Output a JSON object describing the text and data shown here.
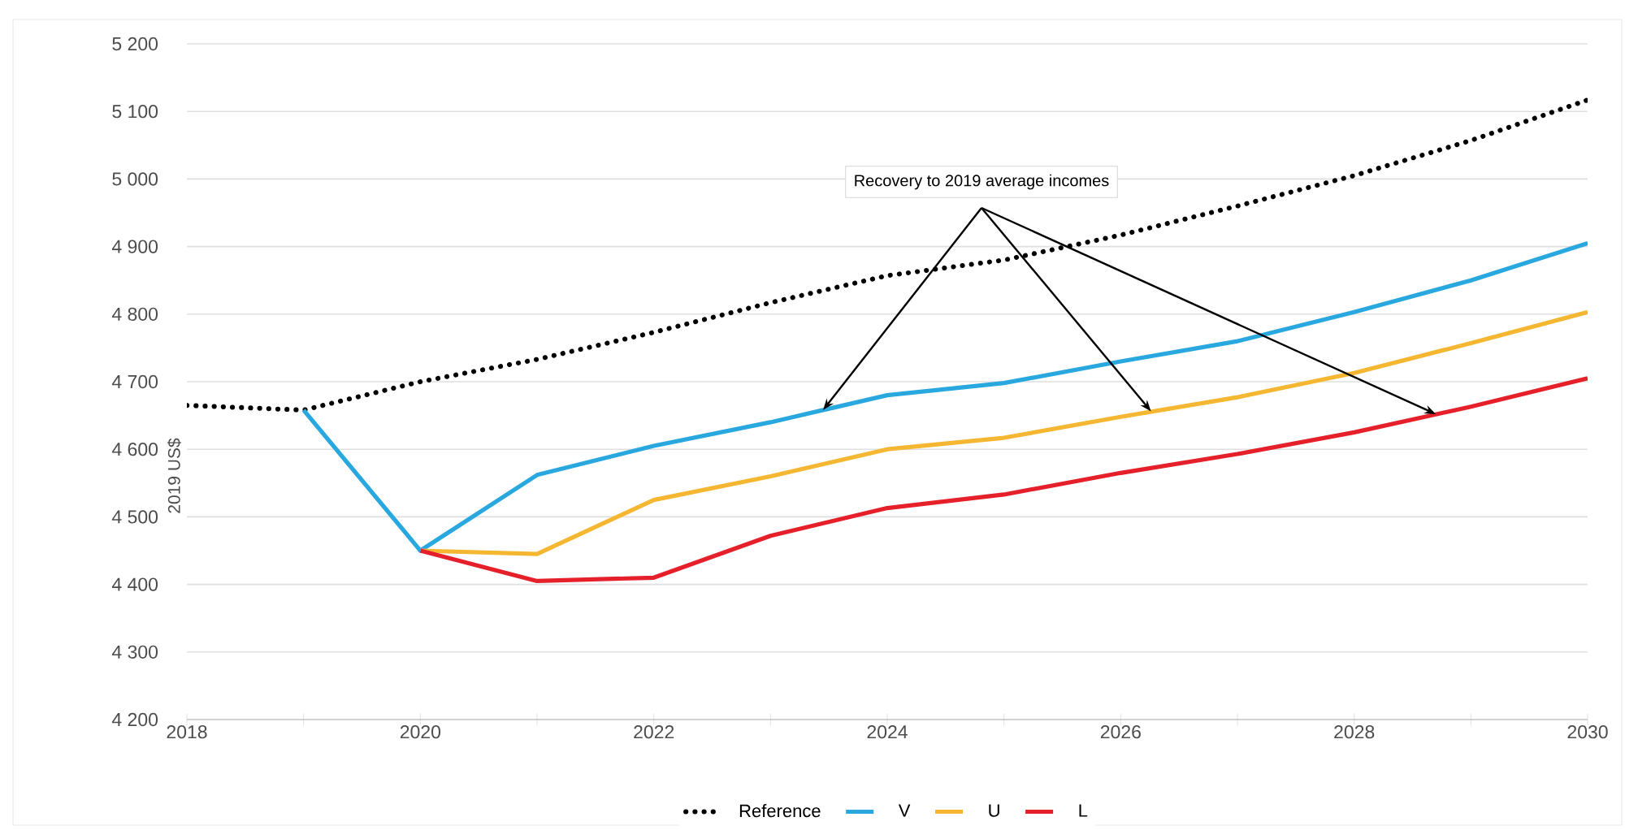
{
  "chart_data": {
    "type": "line",
    "ylabel": "2019 US$",
    "annotations": [
      {
        "text": "Recovery to 2019 average incomes",
        "x": 2023.45,
        "y": 4658
      }
    ],
    "xlim": [
      2018,
      2030
    ],
    "xticks": [
      2018,
      {
        "value": 2019,
        "label": null
      },
      2020,
      {
        "value": 2021,
        "label": null
      },
      2022,
      {
        "value": 2023,
        "label": null
      },
      2024,
      {
        "value": 2025,
        "label": null
      },
      2026,
      {
        "value": 2027,
        "label": null
      },
      2028,
      {
        "value": 2029,
        "label": null
      },
      2030
    ],
    "ylim": [
      4200,
      5200
    ],
    "yticks": [
      {
        "value": 4200,
        "label": "4 200"
      },
      {
        "value": 4300,
        "label": "4 300"
      },
      {
        "value": 4400,
        "label": "4 400"
      },
      {
        "value": 4500,
        "label": "4 500"
      },
      {
        "value": 4600,
        "label": "4 600"
      },
      {
        "value": 4700,
        "label": "4 700"
      },
      {
        "value": 4800,
        "label": "4 800"
      },
      {
        "value": 4900,
        "label": "4 900"
      },
      {
        "value": 5000,
        "label": "5 000"
      },
      {
        "value": 5100,
        "label": "5 100"
      },
      {
        "value": 5200,
        "label": "5 200"
      }
    ],
    "grid": "y",
    "legend": "bottom",
    "marker": "none",
    "series": [
      {
        "name": "Reference",
        "color": "#000000",
        "line_style": "dotted",
        "x": [
          2018,
          2019,
          2020,
          2021,
          2022,
          2023,
          2024,
          2025,
          2026,
          2027,
          2028,
          2029,
          2030
        ],
        "values": [
          4665,
          4658,
          4700,
          4733,
          4773,
          4817,
          4857,
          4880,
          4917,
          4960,
          5005,
          5057,
          5117
        ]
      },
      {
        "name": "V",
        "color": "#29a8e0",
        "line_style": "solid",
        "x": [
          2019,
          2020,
          2021,
          2022,
          2023,
          2024,
          2025,
          2026,
          2027,
          2028,
          2029,
          2030
        ],
        "values": [
          4658,
          4450,
          4562,
          4605,
          4640,
          4680,
          4698,
          4730,
          4760,
          4803,
          4850,
          4905
        ]
      },
      {
        "name": "U",
        "color": "#f5b731",
        "line_style": "solid",
        "x": [
          2020,
          2021,
          2022,
          2023,
          2024,
          2025,
          2026,
          2027,
          2028,
          2029,
          2030
        ],
        "values": [
          4450,
          4445,
          4525,
          4560,
          4600,
          4617,
          4648,
          4677,
          4713,
          4757,
          4803
        ]
      },
      {
        "name": "L",
        "color": "#e5202a",
        "line_style": "solid",
        "x": [
          2020,
          2021,
          2022,
          2023,
          2024,
          2025,
          2026,
          2027,
          2028,
          2029,
          2030
        ],
        "values": [
          4450,
          4405,
          4410,
          4472,
          4513,
          4533,
          4565,
          4593,
          4625,
          4663,
          4705
        ]
      }
    ]
  }
}
